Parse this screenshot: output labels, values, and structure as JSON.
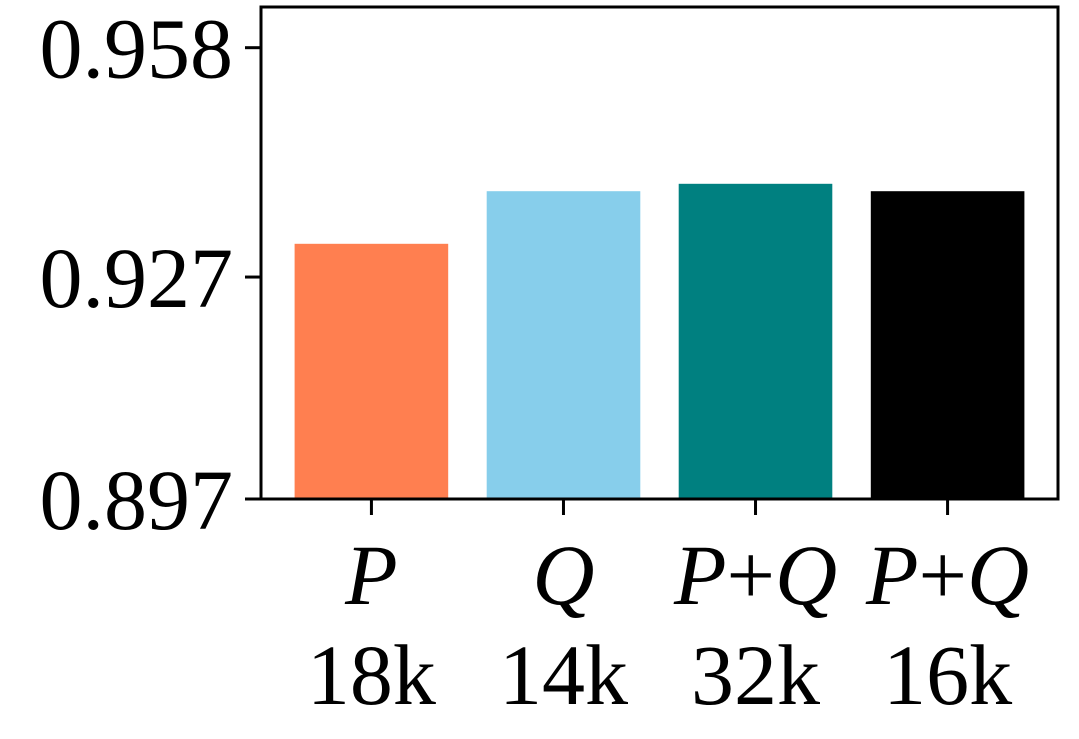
{
  "chart_data": {
    "type": "bar",
    "title": "",
    "xlabel": "",
    "ylabel": "",
    "categories": [
      {
        "name": "P",
        "size": "18k"
      },
      {
        "name": "Q",
        "size": "14k"
      },
      {
        "name": "P+Q",
        "size": "32k"
      },
      {
        "name": "P+Q",
        "size": "16k"
      }
    ],
    "values": [
      0.9315,
      0.9386,
      0.9396,
      0.9386
    ],
    "colors": [
      "#FF7F50",
      "#87CEEB",
      "#008080",
      "#000000"
    ],
    "ylim": [
      0.897,
      0.9635
    ],
    "yticks": [
      0.897,
      0.927,
      0.958
    ],
    "ytick_labels": [
      "0.897",
      "0.927",
      "0.958"
    ],
    "grid": false,
    "legend": "none"
  }
}
